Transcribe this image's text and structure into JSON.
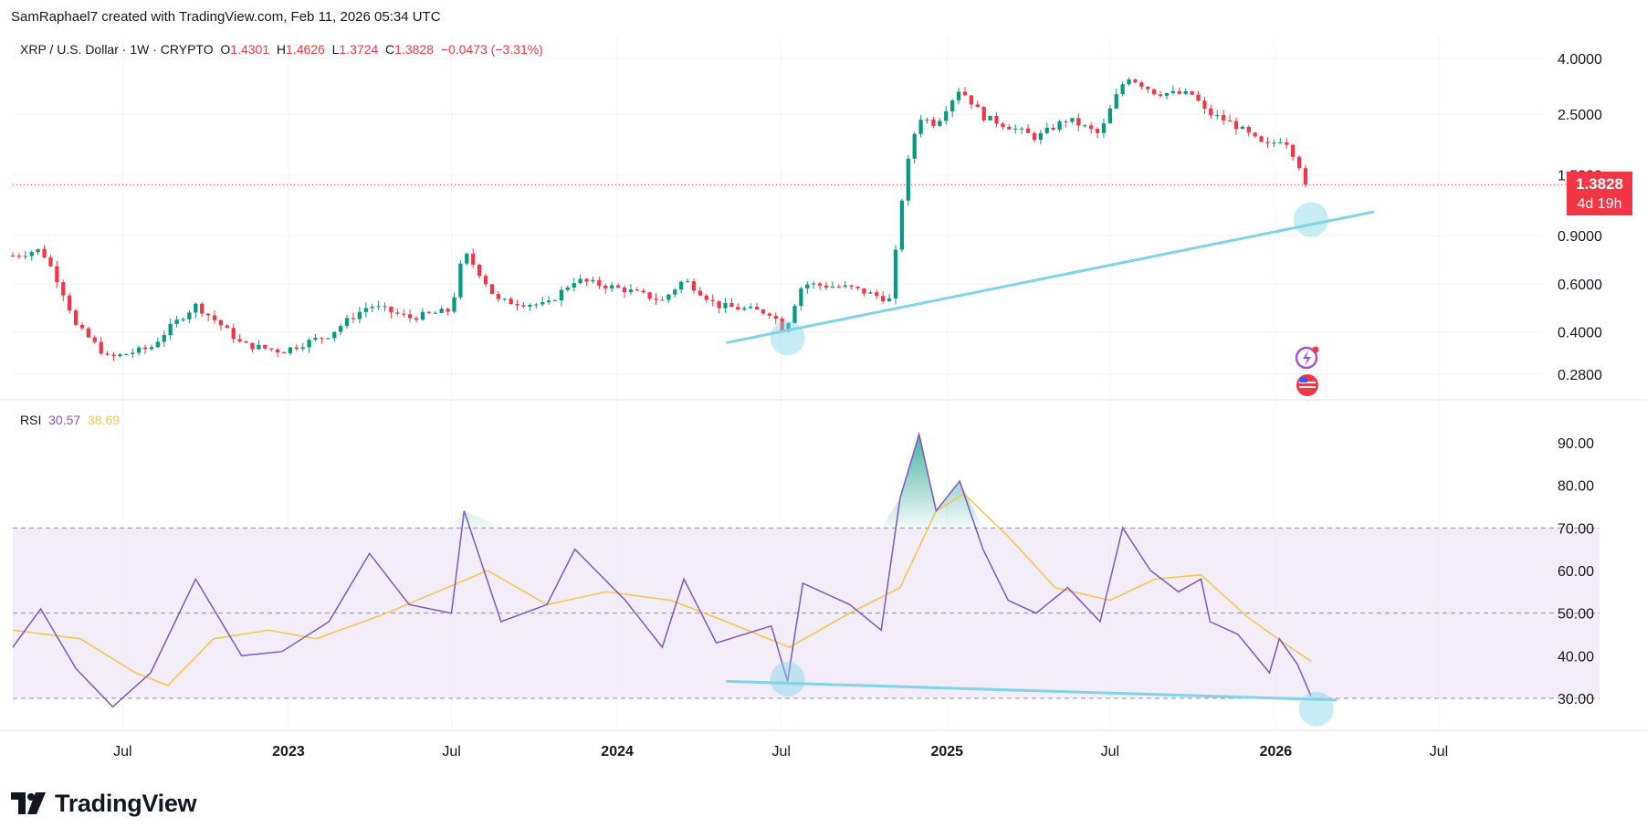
{
  "header": {
    "credit": "SamRaphael7 created with TradingView.com, Feb 11, 2026 05:34 UTC"
  },
  "legend": {
    "symbol": "XRP / U.S. Dollar · 1W · CRYPTO",
    "o_label": "O",
    "o": "1.4301",
    "h_label": "H",
    "h": "1.4626",
    "l_label": "L",
    "l": "1.3724",
    "c_label": "C",
    "c": "1.3828",
    "change": "−0.0473 (−3.31%)"
  },
  "price_badge": {
    "price": "1.3828",
    "countdown": "4d 19h"
  },
  "rsi_legend": {
    "label": "RSI",
    "rsi": "30.57",
    "ma": "38.69"
  },
  "footer": {
    "brand": "TradingView"
  },
  "colors": {
    "up": "#089981",
    "down": "#f23645",
    "trendline": "#80d4e6",
    "rsi": "#7e57c2",
    "rsi_ma": "#f7c548",
    "band": "#ede7f6"
  },
  "chart_data": [
    {
      "type": "candlestick",
      "title": "XRP / U.S. Dollar · 1W · CRYPTO",
      "y_scale": "log",
      "y_ticks": [
        "4.0000",
        "2.5000",
        "1.5000",
        "0.9000",
        "0.6000",
        "0.4000",
        "0.2800"
      ],
      "last_price": "1.3828",
      "x_ticks": [
        "Jul",
        "2023",
        "Jul",
        "2024",
        "Jul",
        "2025",
        "Jul",
        "2026",
        "Jul"
      ],
      "anchors": [
        {
          "date": "2022-03-01",
          "close": 0.76
        },
        {
          "date": "2022-04-01",
          "close": 0.8
        },
        {
          "date": "2022-05-10",
          "close": 0.42
        },
        {
          "date": "2022-06-15",
          "close": 0.32
        },
        {
          "date": "2022-08-01",
          "close": 0.35
        },
        {
          "date": "2022-09-20",
          "close": 0.5
        },
        {
          "date": "2022-11-10",
          "close": 0.36
        },
        {
          "date": "2022-12-25",
          "close": 0.34
        },
        {
          "date": "2023-02-15",
          "close": 0.39
        },
        {
          "date": "2023-04-01",
          "close": 0.5
        },
        {
          "date": "2023-05-15",
          "close": 0.45
        },
        {
          "date": "2023-07-01",
          "close": 0.48
        },
        {
          "date": "2023-07-15",
          "close": 0.78
        },
        {
          "date": "2023-08-20",
          "close": 0.52
        },
        {
          "date": "2023-10-15",
          "close": 0.5
        },
        {
          "date": "2023-11-15",
          "close": 0.62
        },
        {
          "date": "2024-01-10",
          "close": 0.57
        },
        {
          "date": "2024-02-20",
          "close": 0.52
        },
        {
          "date": "2024-03-15",
          "close": 0.62
        },
        {
          "date": "2024-04-20",
          "close": 0.5
        },
        {
          "date": "2024-06-20",
          "close": 0.47
        },
        {
          "date": "2024-07-05",
          "close": 0.4
        },
        {
          "date": "2024-07-25",
          "close": 0.6
        },
        {
          "date": "2024-09-15",
          "close": 0.58
        },
        {
          "date": "2024-11-01",
          "close": 0.52
        },
        {
          "date": "2024-11-10",
          "close": 1.1
        },
        {
          "date": "2024-12-01",
          "close": 2.45
        },
        {
          "date": "2024-12-20",
          "close": 2.3
        },
        {
          "date": "2025-01-15",
          "close": 3.1
        },
        {
          "date": "2025-02-10",
          "close": 2.45
        },
        {
          "date": "2025-04-10",
          "close": 2.05
        },
        {
          "date": "2025-05-15",
          "close": 2.4
        },
        {
          "date": "2025-06-20",
          "close": 2.1
        },
        {
          "date": "2025-07-20",
          "close": 3.45
        },
        {
          "date": "2025-08-20",
          "close": 3.0
        },
        {
          "date": "2025-10-01",
          "close": 2.95
        },
        {
          "date": "2025-10-15",
          "close": 2.55
        },
        {
          "date": "2025-11-15",
          "close": 2.3
        },
        {
          "date": "2025-12-20",
          "close": 1.9
        },
        {
          "date": "2026-01-10",
          "close": 2.05
        },
        {
          "date": "2026-02-01",
          "close": 1.5
        },
        {
          "date": "2026-02-09",
          "close": 1.3828
        }
      ],
      "trendline": [
        {
          "date": "2024-05-01",
          "price": 0.365
        },
        {
          "date": "2026-04-20",
          "price": 1.1
        }
      ],
      "highlights": [
        {
          "date": "2024-07-08",
          "price": 0.38
        },
        {
          "date": "2026-02-09",
          "price": 1.03
        }
      ]
    },
    {
      "type": "line",
      "title": "RSI",
      "y_ticks": [
        "90.00",
        "80.00",
        "70.00",
        "60.00",
        "50.00",
        "40.00",
        "30.00"
      ],
      "overbought": 70,
      "middle": 50,
      "oversold": 30,
      "series": [
        {
          "name": "RSI",
          "values": [
            {
              "date": "2022-03-01",
              "value": 42
            },
            {
              "date": "2022-04-01",
              "value": 51
            },
            {
              "date": "2022-05-10",
              "value": 37
            },
            {
              "date": "2022-06-20",
              "value": 28
            },
            {
              "date": "2022-08-01",
              "value": 36
            },
            {
              "date": "2022-09-20",
              "value": 58
            },
            {
              "date": "2022-11-10",
              "value": 40
            },
            {
              "date": "2022-12-25",
              "value": 41
            },
            {
              "date": "2023-02-15",
              "value": 48
            },
            {
              "date": "2023-04-01",
              "value": 64
            },
            {
              "date": "2023-05-15",
              "value": 52
            },
            {
              "date": "2023-07-01",
              "value": 50
            },
            {
              "date": "2023-07-15",
              "value": 74
            },
            {
              "date": "2023-08-25",
              "value": 48
            },
            {
              "date": "2023-10-15",
              "value": 52
            },
            {
              "date": "2023-11-15",
              "value": 65
            },
            {
              "date": "2024-01-10",
              "value": 53
            },
            {
              "date": "2024-02-20",
              "value": 42
            },
            {
              "date": "2024-03-15",
              "value": 58
            },
            {
              "date": "2024-04-20",
              "value": 43
            },
            {
              "date": "2024-06-20",
              "value": 47
            },
            {
              "date": "2024-07-08",
              "value": 34
            },
            {
              "date": "2024-07-25",
              "value": 57
            },
            {
              "date": "2024-09-15",
              "value": 52
            },
            {
              "date": "2024-10-20",
              "value": 46
            },
            {
              "date": "2024-11-10",
              "value": 77
            },
            {
              "date": "2024-12-01",
              "value": 92
            },
            {
              "date": "2024-12-20",
              "value": 74
            },
            {
              "date": "2025-01-15",
              "value": 81
            },
            {
              "date": "2025-02-10",
              "value": 65
            },
            {
              "date": "2025-03-10",
              "value": 53
            },
            {
              "date": "2025-04-10",
              "value": 50
            },
            {
              "date": "2025-05-15",
              "value": 56
            },
            {
              "date": "2025-06-20",
              "value": 48
            },
            {
              "date": "2025-07-15",
              "value": 70
            },
            {
              "date": "2025-08-15",
              "value": 60
            },
            {
              "date": "2025-09-15",
              "value": 55
            },
            {
              "date": "2025-10-10",
              "value": 58
            },
            {
              "date": "2025-10-20",
              "value": 48
            },
            {
              "date": "2025-11-20",
              "value": 45
            },
            {
              "date": "2025-12-25",
              "value": 36
            },
            {
              "date": "2026-01-05",
              "value": 44
            },
            {
              "date": "2026-01-25",
              "value": 38
            },
            {
              "date": "2026-02-09",
              "value": 30.57
            }
          ]
        },
        {
          "name": "RSI-based MA",
          "values": [
            {
              "date": "2022-03-01",
              "value": 46
            },
            {
              "date": "2022-05-15",
              "value": 44
            },
            {
              "date": "2022-07-15",
              "value": 36
            },
            {
              "date": "2022-08-20",
              "value": 33
            },
            {
              "date": "2022-10-10",
              "value": 44
            },
            {
              "date": "2022-12-10",
              "value": 46
            },
            {
              "date": "2023-02-01",
              "value": 44
            },
            {
              "date": "2023-04-20",
              "value": 50
            },
            {
              "date": "2023-06-15",
              "value": 55
            },
            {
              "date": "2023-08-10",
              "value": 60
            },
            {
              "date": "2023-10-15",
              "value": 52
            },
            {
              "date": "2023-12-20",
              "value": 55
            },
            {
              "date": "2024-03-01",
              "value": 53
            },
            {
              "date": "2024-05-01",
              "value": 48
            },
            {
              "date": "2024-07-10",
              "value": 42
            },
            {
              "date": "2024-09-15",
              "value": 50
            },
            {
              "date": "2024-11-10",
              "value": 56
            },
            {
              "date": "2024-12-20",
              "value": 74
            },
            {
              "date": "2025-01-20",
              "value": 78
            },
            {
              "date": "2025-03-10",
              "value": 68
            },
            {
              "date": "2025-05-01",
              "value": 56
            },
            {
              "date": "2025-07-01",
              "value": 53
            },
            {
              "date": "2025-08-20",
              "value": 58
            },
            {
              "date": "2025-10-10",
              "value": 59
            },
            {
              "date": "2025-12-01",
              "value": 49
            },
            {
              "date": "2026-01-10",
              "value": 43
            },
            {
              "date": "2026-02-09",
              "value": 38.69
            }
          ]
        }
      ],
      "trendline": [
        {
          "date": "2024-05-01",
          "value": 34.0
        },
        {
          "date": "2026-03-10",
          "value": 29.6
        }
      ],
      "highlights": [
        {
          "date": "2024-07-08",
          "value": 34.5
        },
        {
          "date": "2026-02-15",
          "value": 27.5
        }
      ]
    }
  ]
}
